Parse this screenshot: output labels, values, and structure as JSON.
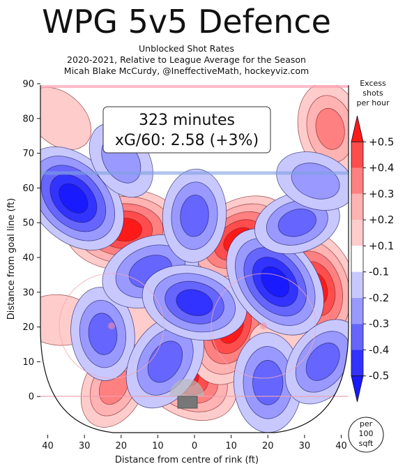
{
  "title": "WPG 5v5 Defence",
  "subtitle_lines": [
    "Unblocked Shot Rates",
    "2020-2021, Relative to League Average for the Season",
    "Micah Blake McCurdy, @IneffectiveMath, hockeyviz.com"
  ],
  "info_box": {
    "line1": "323 minutes",
    "line2": "xG/60: 2.58 (+3%)"
  },
  "colorbar": {
    "title_lines": [
      "Excess",
      "shots",
      "per hour"
    ],
    "tick_labels": [
      "+0.5",
      "+0.4",
      "+0.3",
      "+0.2",
      "+0.1",
      "-0.1",
      "-0.2",
      "-0.3",
      "-0.4",
      "-0.5"
    ],
    "colors": [
      "#ff1a1a",
      "#ff4d4d",
      "#ff8080",
      "#ffb3b3",
      "#ffcccc",
      "#ffffff",
      "#c8c8ff",
      "#9999ff",
      "#6666ff",
      "#3333ff",
      "#1a1aff"
    ],
    "unit_lines": [
      "per",
      "100",
      "sqft"
    ]
  },
  "chart_data": {
    "type": "heatmap",
    "title": "WPG 5v5 Defence",
    "xlabel": "Distance from centre of rink (ft)",
    "ylabel": "Distance from goal line (ft)",
    "xlim": [
      42,
      -42
    ],
    "ylim": [
      -11,
      90
    ],
    "x_ticks": [
      "40",
      "30",
      "20",
      "10",
      "0",
      "10",
      "20",
      "30",
      "40"
    ],
    "x_tick_values": [
      40,
      30,
      20,
      10,
      0,
      -10,
      -20,
      -30,
      -40
    ],
    "y_ticks": [
      "0",
      "10",
      "20",
      "30",
      "40",
      "50",
      "60",
      "70",
      "80",
      "90"
    ],
    "y_tick_values": [
      0,
      10,
      20,
      30,
      40,
      50,
      60,
      70,
      80,
      90
    ],
    "value_unit": "Excess shots per hour per 100 sqft",
    "blobs": [
      {
        "x": 19,
        "y": 48,
        "value": 0.5
      },
      {
        "x": 3,
        "y": 7,
        "value": 0.5
      },
      {
        "x": -33,
        "y": 31,
        "value": 0.5
      },
      {
        "x": -10,
        "y": 20,
        "value": 0.5
      },
      {
        "x": -12,
        "y": 45,
        "value": 0.45
      },
      {
        "x": 37,
        "y": 22,
        "value": 0.15
      },
      {
        "x": 37,
        "y": 80,
        "value": 0.15
      },
      {
        "x": -37,
        "y": 77,
        "value": 0.3
      },
      {
        "x": 22,
        "y": 3,
        "value": 0.25
      },
      {
        "x": 13,
        "y": 23,
        "value": 0.15
      },
      {
        "x": -25,
        "y": 15,
        "value": 0.15
      },
      {
        "x": 33,
        "y": 57,
        "value": -0.5
      },
      {
        "x": 25,
        "y": 18,
        "value": -0.3
      },
      {
        "x": 8,
        "y": 10,
        "value": -0.35
      },
      {
        "x": 12,
        "y": 36,
        "value": -0.35
      },
      {
        "x": 0,
        "y": 27,
        "value": -0.4
      },
      {
        "x": -22,
        "y": 33,
        "value": -0.5
      },
      {
        "x": -20,
        "y": 4,
        "value": -0.35
      },
      {
        "x": -35,
        "y": 10,
        "value": -0.3
      },
      {
        "x": -28,
        "y": 50,
        "value": -0.25
      },
      {
        "x": -33,
        "y": 62,
        "value": -0.2
      },
      {
        "x": 20,
        "y": 68,
        "value": -0.2
      },
      {
        "x": 0,
        "y": 52,
        "value": -0.3
      }
    ]
  }
}
